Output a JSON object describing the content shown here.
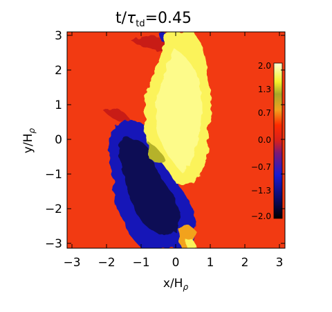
{
  "title": {
    "main": "t/",
    "tau": "τ",
    "sub": "td",
    "value": "=0.45"
  },
  "x_axis": {
    "label": "x/H",
    "label_sub": "ρ",
    "ticks": [
      "−3",
      "−2",
      "−1",
      "0",
      "1",
      "2",
      "3"
    ]
  },
  "y_axis": {
    "label": "y/H",
    "label_sub": "ρ",
    "ticks": [
      "3",
      "2",
      "1",
      "0",
      "−1",
      "−2",
      "−3"
    ]
  },
  "colorbar": {
    "ticks": [
      "2.0",
      "1.3",
      "0.7",
      "0.0",
      "−0.7",
      "−1.3",
      "−2.0"
    ],
    "stops": [
      "#ffffd8",
      "#f6f02a",
      "#a8a628",
      "#f2a21e",
      "#ff2a00",
      "#d8201c",
      "#7a1878",
      "#1a1ad0",
      "#0a0a60",
      "#000000"
    ]
  },
  "colors": {
    "background": "#f23a12",
    "positive_region": "#fbf35a",
    "negative_region": "#1717b8"
  }
}
